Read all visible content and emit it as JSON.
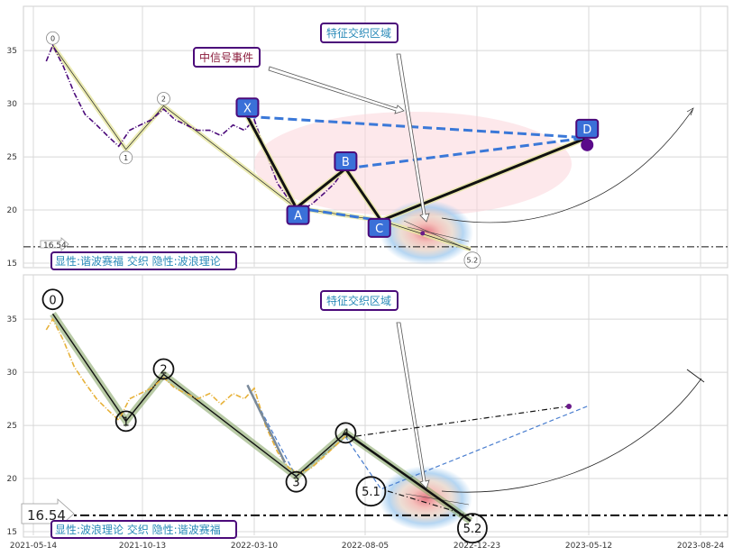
{
  "chart_data": [
    {
      "type": "line",
      "panel": "top",
      "ylim": [
        15,
        39
      ],
      "yticks": [
        15,
        20,
        25,
        30,
        35
      ],
      "xticks": [
        "2021-05-14",
        "2021-10-13",
        "2022-03-10",
        "2022-08-05",
        "2022-12-23",
        "2023-05-12",
        "2023-08-24"
      ],
      "price_series": [
        {
          "x": "2021-06-01",
          "y": 34.0
        },
        {
          "x": "2021-06-10",
          "y": 35.5
        },
        {
          "x": "2021-06-25",
          "y": 33.5
        },
        {
          "x": "2021-07-10",
          "y": 31.0
        },
        {
          "x": "2021-07-25",
          "y": 29.0
        },
        {
          "x": "2021-08-10",
          "y": 28.0
        },
        {
          "x": "2021-08-25",
          "y": 27.0
        },
        {
          "x": "2021-09-10",
          "y": 26.0
        },
        {
          "x": "2021-09-25",
          "y": 27.5
        },
        {
          "x": "2021-10-10",
          "y": 28.0
        },
        {
          "x": "2021-10-25",
          "y": 28.5
        },
        {
          "x": "2021-11-10",
          "y": 29.5
        },
        {
          "x": "2021-11-25",
          "y": 28.5
        },
        {
          "x": "2021-12-10",
          "y": 28.0
        },
        {
          "x": "2021-12-25",
          "y": 27.5
        },
        {
          "x": "2022-01-10",
          "y": 27.5
        },
        {
          "x": "2022-01-25",
          "y": 27.0
        },
        {
          "x": "2022-02-10",
          "y": 28.0
        },
        {
          "x": "2022-02-25",
          "y": 27.5
        },
        {
          "x": "2022-03-10",
          "y": 28.5
        },
        {
          "x": "2022-03-25",
          "y": 25.5
        },
        {
          "x": "2022-04-10",
          "y": 22.5
        },
        {
          "x": "2022-04-25",
          "y": 21.0
        },
        {
          "x": "2022-05-10",
          "y": 20.0
        },
        {
          "x": "2022-05-25",
          "y": 20.5
        },
        {
          "x": "2022-06-10",
          "y": 21.5
        },
        {
          "x": "2022-06-25",
          "y": 22.5
        },
        {
          "x": "2022-07-10",
          "y": 24.0
        }
      ],
      "harmonic_points": [
        {
          "label": "X",
          "x": "2022-03-01",
          "y": 28.8
        },
        {
          "label": "A",
          "x": "2022-05-05",
          "y": 20.2
        },
        {
          "label": "B",
          "x": "2022-07-10",
          "y": 23.9
        },
        {
          "label": "C",
          "x": "2022-08-25",
          "y": 19.0
        },
        {
          "label": "D",
          "x": "2023-05-10",
          "y": 26.8
        }
      ],
      "wave_points": [
        {
          "label": "0",
          "x": "2021-06-10",
          "y": 35.5
        },
        {
          "label": "1",
          "x": "2021-09-20",
          "y": 25.7
        },
        {
          "label": "2",
          "x": "2021-11-10",
          "y": 29.8
        },
        {
          "label": "5.2",
          "x": "2022-12-15",
          "y": 16.3
        }
      ],
      "level": {
        "y": 16.54,
        "label": "16.54"
      },
      "annotations": {
        "signal_event": "中信号事件",
        "feature_zone": "特征交织区域",
        "legend": "显性:谐波赛福 交织 隐性:波浪理论"
      }
    },
    {
      "type": "line",
      "panel": "bottom",
      "ylim": [
        15,
        39
      ],
      "yticks": [
        15,
        20,
        25,
        30,
        35
      ],
      "xticks": [
        "2021-05-14",
        "2021-10-13",
        "2022-03-10",
        "2022-08-05",
        "2022-12-23",
        "2023-05-12",
        "2023-08-24"
      ],
      "price_series": [
        {
          "x": "2021-06-01",
          "y": 34.0
        },
        {
          "x": "2021-06-10",
          "y": 35.0
        },
        {
          "x": "2021-06-25",
          "y": 33.0
        },
        {
          "x": "2021-07-10",
          "y": 30.5
        },
        {
          "x": "2021-07-25",
          "y": 29.0
        },
        {
          "x": "2021-08-10",
          "y": 27.5
        },
        {
          "x": "2021-08-25",
          "y": 26.5
        },
        {
          "x": "2021-09-10",
          "y": 25.5
        },
        {
          "x": "2021-09-25",
          "y": 27.5
        },
        {
          "x": "2021-10-10",
          "y": 28.0
        },
        {
          "x": "2021-10-25",
          "y": 28.5
        },
        {
          "x": "2021-11-10",
          "y": 29.5
        },
        {
          "x": "2021-11-25",
          "y": 28.5
        },
        {
          "x": "2021-12-10",
          "y": 28.0
        },
        {
          "x": "2021-12-25",
          "y": 27.5
        },
        {
          "x": "2022-01-10",
          "y": 28.0
        },
        {
          "x": "2022-01-25",
          "y": 27.0
        },
        {
          "x": "2022-02-10",
          "y": 28.0
        },
        {
          "x": "2022-02-25",
          "y": 27.5
        },
        {
          "x": "2022-03-10",
          "y": 28.5
        },
        {
          "x": "2022-03-25",
          "y": 25.0
        },
        {
          "x": "2022-04-10",
          "y": 22.5
        },
        {
          "x": "2022-04-25",
          "y": 21.0
        },
        {
          "x": "2022-05-10",
          "y": 20.5
        },
        {
          "x": "2022-05-25",
          "y": 21.0
        },
        {
          "x": "2022-06-10",
          "y": 22.0
        },
        {
          "x": "2022-06-25",
          "y": 23.0
        },
        {
          "x": "2022-07-10",
          "y": 24.0
        }
      ],
      "wave_points": [
        {
          "label": "0",
          "x": "2021-06-10",
          "y": 35.5
        },
        {
          "label": "1",
          "x": "2021-09-20",
          "y": 25.4
        },
        {
          "label": "2",
          "x": "2021-11-10",
          "y": 29.8
        },
        {
          "label": "3",
          "x": "2022-05-05",
          "y": 20.2
        },
        {
          "label": "4",
          "x": "2022-07-10",
          "y": 24.3
        },
        {
          "label": "5.1",
          "x": "2022-08-10",
          "y": 18.8
        },
        {
          "label": "5.2",
          "x": "2022-12-15",
          "y": 16.0
        }
      ],
      "hidden_pattern": [
        {
          "x": "2022-03-01",
          "y": 28.8
        },
        {
          "x": "2022-05-05",
          "y": 20.2
        },
        {
          "x": "2022-07-10",
          "y": 23.9
        },
        {
          "x": "2022-08-25",
          "y": 19.0
        },
        {
          "x": "2023-05-10",
          "y": 26.8
        }
      ],
      "level": {
        "y": 16.54,
        "label": "16.54"
      },
      "annotations": {
        "feature_zone": "特征交织区域",
        "legend": "显性:波浪理论 交织 隐性:谐波赛福"
      }
    }
  ]
}
